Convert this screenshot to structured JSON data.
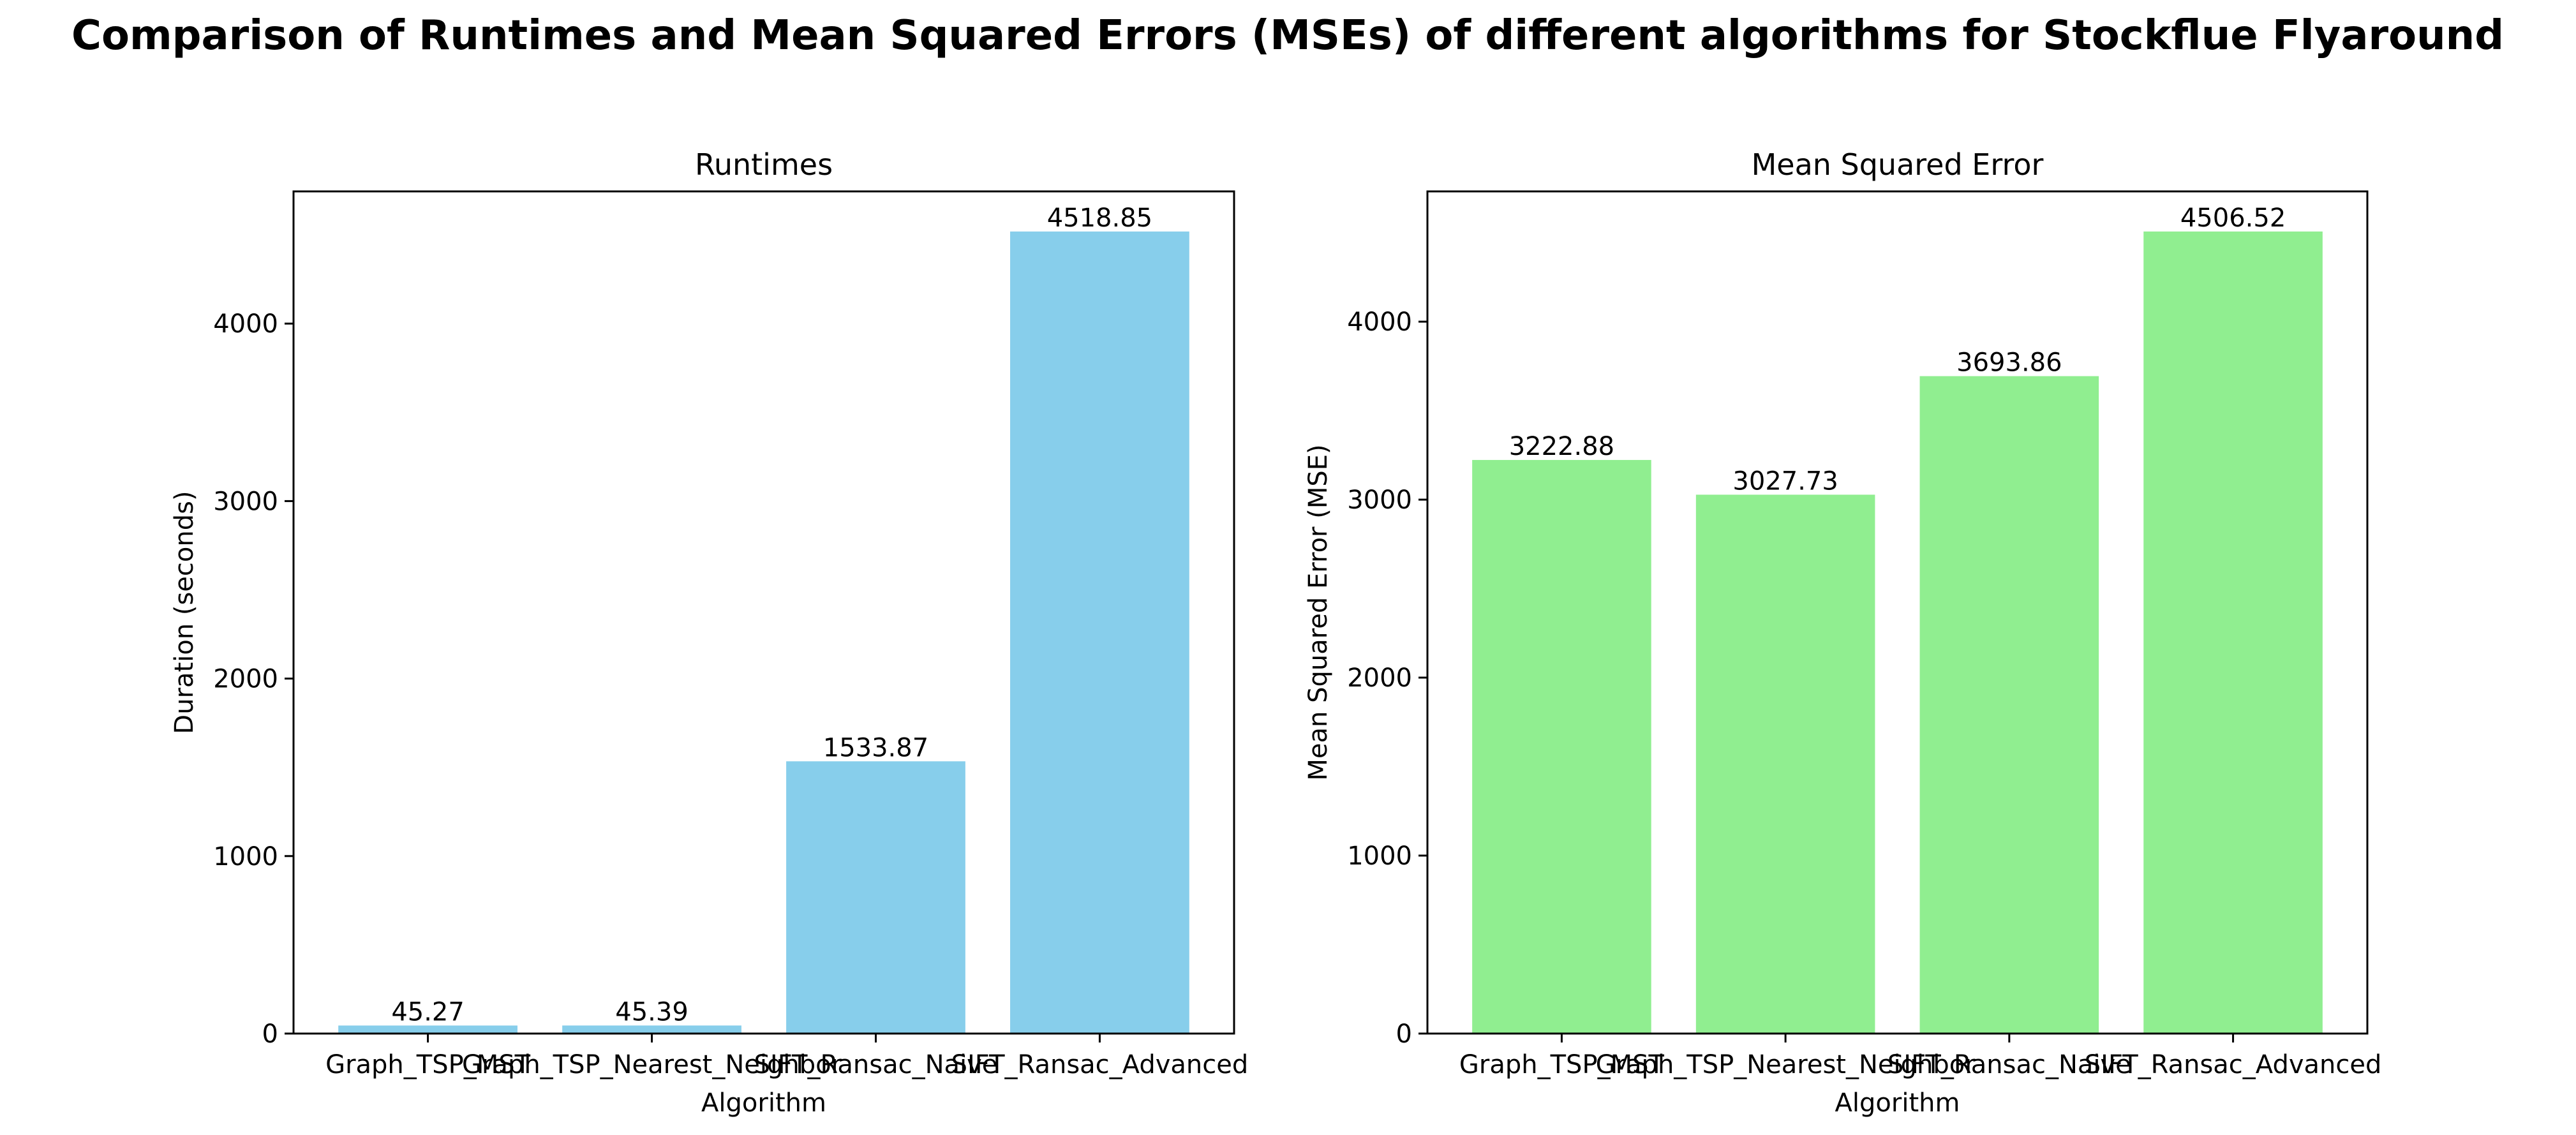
{
  "figure_title": "Comparison of Runtimes and Mean Squared Errors (MSEs) of different algorithms for Stockflue Flyaround",
  "chart_data": [
    {
      "type": "bar",
      "title": "Runtimes",
      "xlabel": "Algorithm",
      "ylabel": "Duration (seconds)",
      "categories": [
        "Graph_TSP_MST",
        "Graph_TSP_Nearest_Neighbor",
        "SIFT_Ransac_Naive",
        "SIFT_Ransac_Advanced"
      ],
      "values": [
        45.27,
        45.39,
        1533.87,
        4518.85
      ],
      "value_labels": [
        "45.27",
        "45.39",
        "1533.87",
        "4518.85"
      ],
      "ylim": [
        0,
        4744.79
      ],
      "yticks": [
        0,
        1000,
        2000,
        3000,
        4000
      ],
      "ytick_labels": [
        "0",
        "1000",
        "2000",
        "3000",
        "4000"
      ],
      "color": "#87CEEB",
      "grid": false
    },
    {
      "type": "bar",
      "title": "Mean Squared Error",
      "xlabel": "Algorithm",
      "ylabel": "Mean Squared Error (MSE)",
      "categories": [
        "Graph_TSP_MST",
        "Graph_TSP_Nearest_Neighbor",
        "SIFT_Ransac_Naive",
        "SIFT_Ransac_Advanced"
      ],
      "values": [
        3222.88,
        3027.73,
        3693.86,
        4506.52
      ],
      "value_labels": [
        "3222.88",
        "3027.73",
        "3693.86",
        "4506.52"
      ],
      "ylim": [
        0,
        4731.85
      ],
      "yticks": [
        0,
        1000,
        2000,
        3000,
        4000
      ],
      "ytick_labels": [
        "0",
        "1000",
        "2000",
        "3000",
        "4000"
      ],
      "color": "#90EE90",
      "grid": false
    }
  ]
}
